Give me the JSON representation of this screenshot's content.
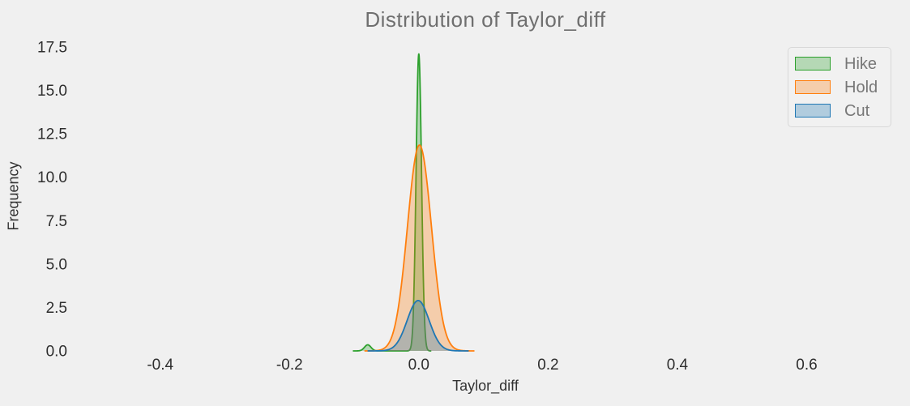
{
  "figure": {
    "background": "#f0f0f0",
    "title_color": "#6f6f6f",
    "tick_color": "#2e2e2e",
    "axis_label_color": "#333333",
    "legend_text_color": "#777777",
    "legend_background": "#f1f1f1",
    "legend_border": "#d8d8d8"
  },
  "chart_data": {
    "type": "area",
    "subtype": "kde-distribution",
    "title": "Distribution of Taylor_diff",
    "xlabel": "Taylor_diff",
    "ylabel": "Frequency",
    "xlim": [
      -0.535,
      0.741
    ],
    "ylim": [
      0,
      17.87
    ],
    "grid": false,
    "xticks": {
      "values": [
        -0.4,
        -0.2,
        0.0,
        0.2,
        0.4,
        0.6
      ],
      "labels": [
        "-0.4",
        "-0.2",
        "0.0",
        "0.2",
        "0.4",
        "0.6"
      ]
    },
    "yticks": {
      "values": [
        0.0,
        2.5,
        5.0,
        7.5,
        10.0,
        12.5,
        15.0,
        17.5
      ],
      "labels": [
        "0.0",
        "2.5",
        "5.0",
        "7.5",
        "10.0",
        "12.5",
        "15.0",
        "17.5"
      ]
    },
    "legend": {
      "position": "upper-right",
      "entries": [
        "Hike",
        "Hold",
        "Cut"
      ]
    },
    "series": [
      {
        "name": "Hike",
        "color": "#2ca02c",
        "fill_alpha": 0.3,
        "line_width": 1.8,
        "components": [
          {
            "mu": 0.0,
            "peak": 17.1,
            "sigma": 0.0042
          },
          {
            "mu": -0.079,
            "peak": 0.35,
            "sigma": 0.005
          }
        ]
      },
      {
        "name": "Hold",
        "color": "#ff7f0e",
        "fill_alpha": 0.3,
        "line_width": 1.8,
        "components": [
          {
            "mu": 0.001,
            "peak": 11.85,
            "sigma": 0.0185
          }
        ]
      },
      {
        "name": "Cut",
        "color": "#1f77b4",
        "fill_alpha": 0.3,
        "line_width": 1.8,
        "components": [
          {
            "mu": -0.001,
            "peak": 2.9,
            "sigma": 0.017
          }
        ]
      }
    ]
  }
}
